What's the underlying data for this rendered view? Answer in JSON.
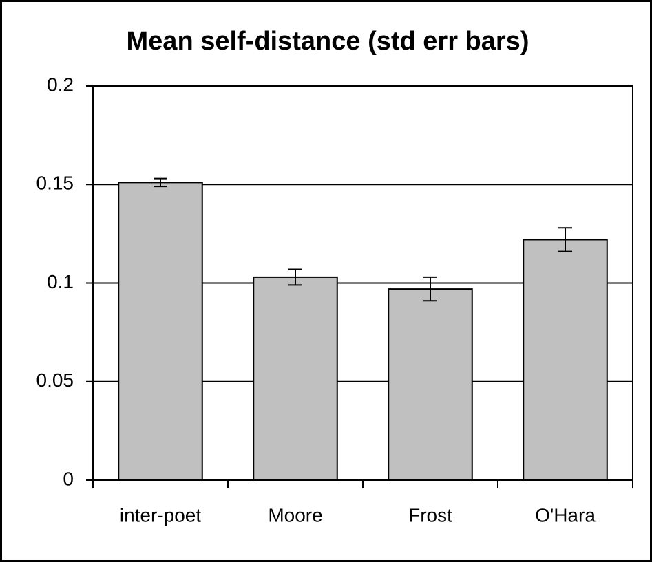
{
  "chart_data": {
    "type": "bar",
    "title": "Mean self-distance (std err bars)",
    "categories": [
      "inter-poet",
      "Moore",
      "Frost",
      "O'Hara"
    ],
    "values": [
      0.151,
      0.103,
      0.097,
      0.122
    ],
    "errors": [
      0.002,
      0.004,
      0.006,
      0.006
    ],
    "color": "#c0c0c0",
    "ylim": [
      0,
      0.2
    ],
    "yticks": [
      0,
      0.05,
      0.1,
      0.15,
      0.2
    ],
    "grid": true
  }
}
